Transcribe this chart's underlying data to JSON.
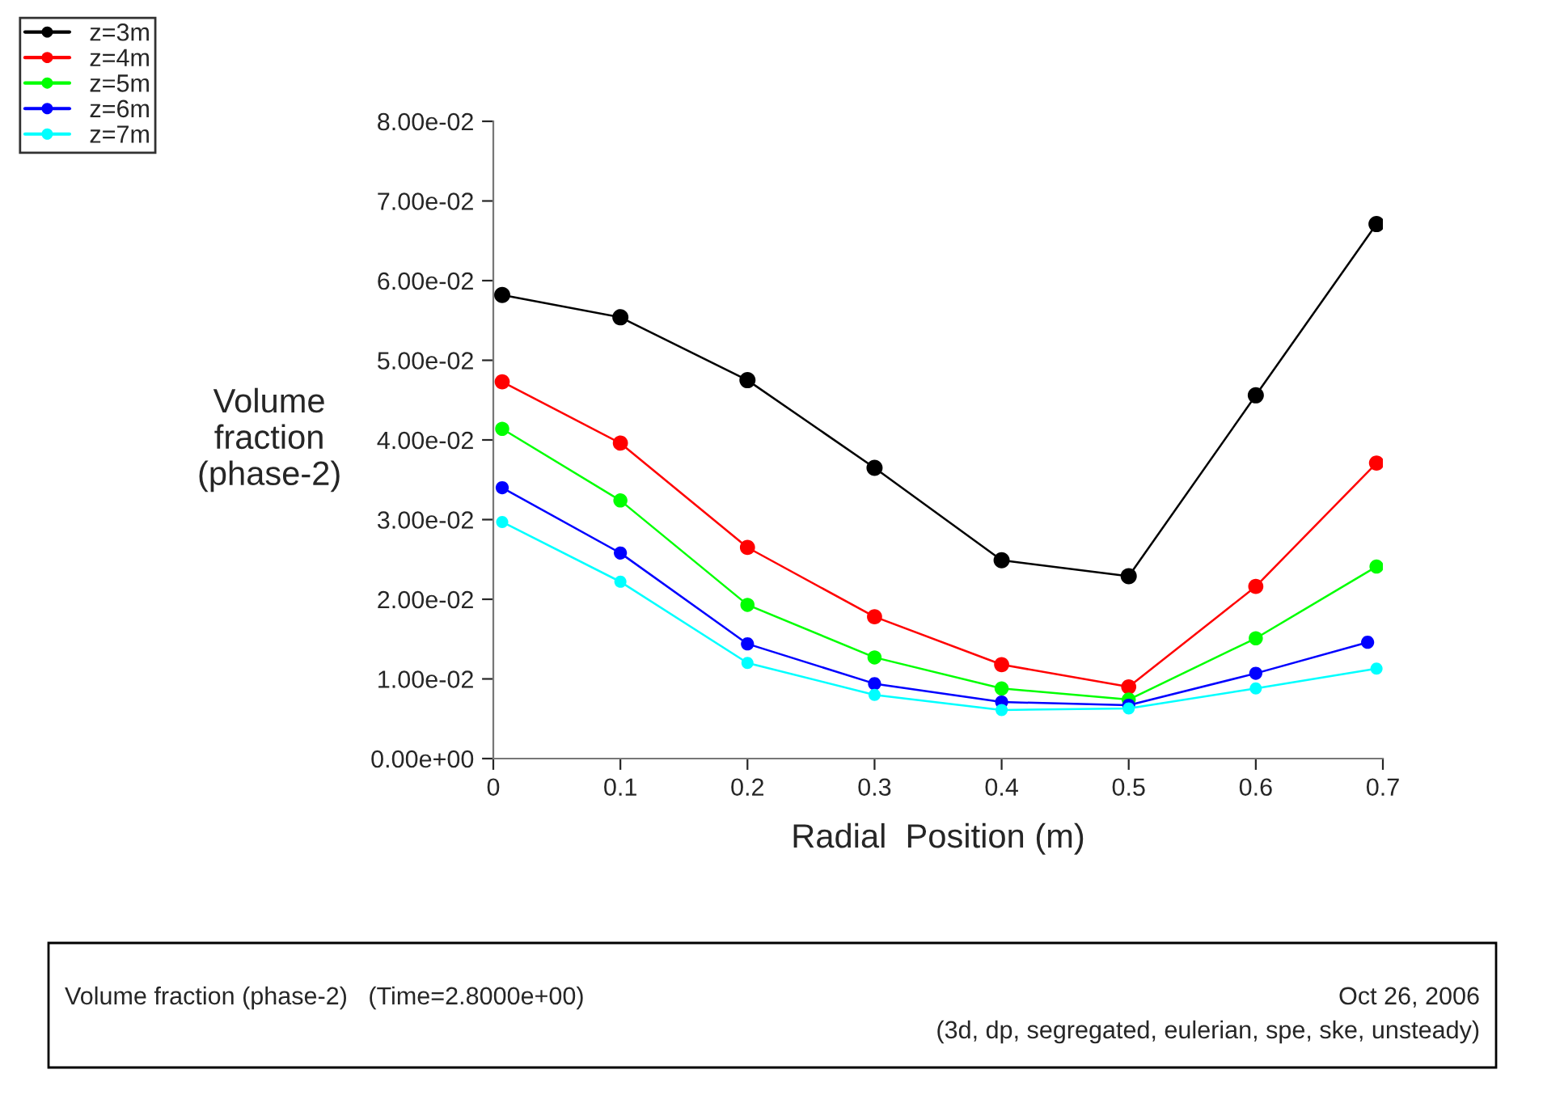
{
  "chart_data": {
    "type": "line",
    "xlabel": "Radial  Position (m)",
    "ylabel": "Volume\nfraction\n(phase-2)",
    "marker": "circle",
    "line_style": "solid",
    "grid": false,
    "legend": "top left",
    "xlim": [
      0,
      0.7
    ],
    "xticks": [
      0,
      0.1,
      0.2,
      0.3,
      0.4,
      0.5,
      0.6,
      0.7
    ],
    "ylim": [
      0,
      0.08
    ],
    "yticks": [
      {
        "value": 0,
        "label": "0.00e+00"
      },
      {
        "value": 0.01,
        "label": "1.00e-02"
      },
      {
        "value": 0.02,
        "label": "2.00e-02"
      },
      {
        "value": 0.03,
        "label": "3.00e-02"
      },
      {
        "value": 0.04,
        "label": "4.00e-02"
      },
      {
        "value": 0.05,
        "label": "5.00e-02"
      },
      {
        "value": 0.06,
        "label": "6.00e-02"
      },
      {
        "value": 0.07,
        "label": "7.00e-02"
      },
      {
        "value": 0.08,
        "label": "8.00e-02"
      }
    ],
    "series": [
      {
        "name": "z=3m",
        "color": "#000000",
        "x": [
          0.007,
          0.1,
          0.2,
          0.3,
          0.4,
          0.5,
          0.6,
          0.695
        ],
        "values": [
          0.0582,
          0.0554,
          0.0475,
          0.0365,
          0.0249,
          0.0229,
          0.0456,
          0.0671
        ]
      },
      {
        "name": "z=4m",
        "color": "#ff0000",
        "x": [
          0.007,
          0.1,
          0.2,
          0.3,
          0.4,
          0.5,
          0.6,
          0.695
        ],
        "values": [
          0.0473,
          0.0396,
          0.0265,
          0.0178,
          0.0118,
          0.009,
          0.0216,
          0.0371
        ]
      },
      {
        "name": "z=5m",
        "color": "#00ff00",
        "x": [
          0.007,
          0.1,
          0.2,
          0.3,
          0.4,
          0.5,
          0.6,
          0.695
        ],
        "values": [
          0.0414,
          0.0324,
          0.0193,
          0.0127,
          0.0088,
          0.0074,
          0.0151,
          0.0241
        ]
      },
      {
        "name": "z=6m",
        "color": "#0000ff",
        "x": [
          0.007,
          0.1,
          0.2,
          0.3,
          0.4,
          0.5,
          0.6,
          0.688
        ],
        "values": [
          0.034,
          0.0258,
          0.0144,
          0.0094,
          0.0071,
          0.0067,
          0.0107,
          0.0146
        ]
      },
      {
        "name": "z=7m",
        "color": "#00ffff",
        "x": [
          0.007,
          0.1,
          0.2,
          0.3,
          0.4,
          0.5,
          0.6,
          0.695
        ],
        "values": [
          0.0297,
          0.0222,
          0.012,
          0.008,
          0.0061,
          0.0063,
          0.0088,
          0.0113
        ]
      }
    ],
    "annotations": [
      "Volume fraction (phase-2)   (Time=2.8000e+00)",
      "Oct 26, 2006",
      "(3d, dp, segregated, eulerian, spe, ske, unsteady)"
    ]
  }
}
